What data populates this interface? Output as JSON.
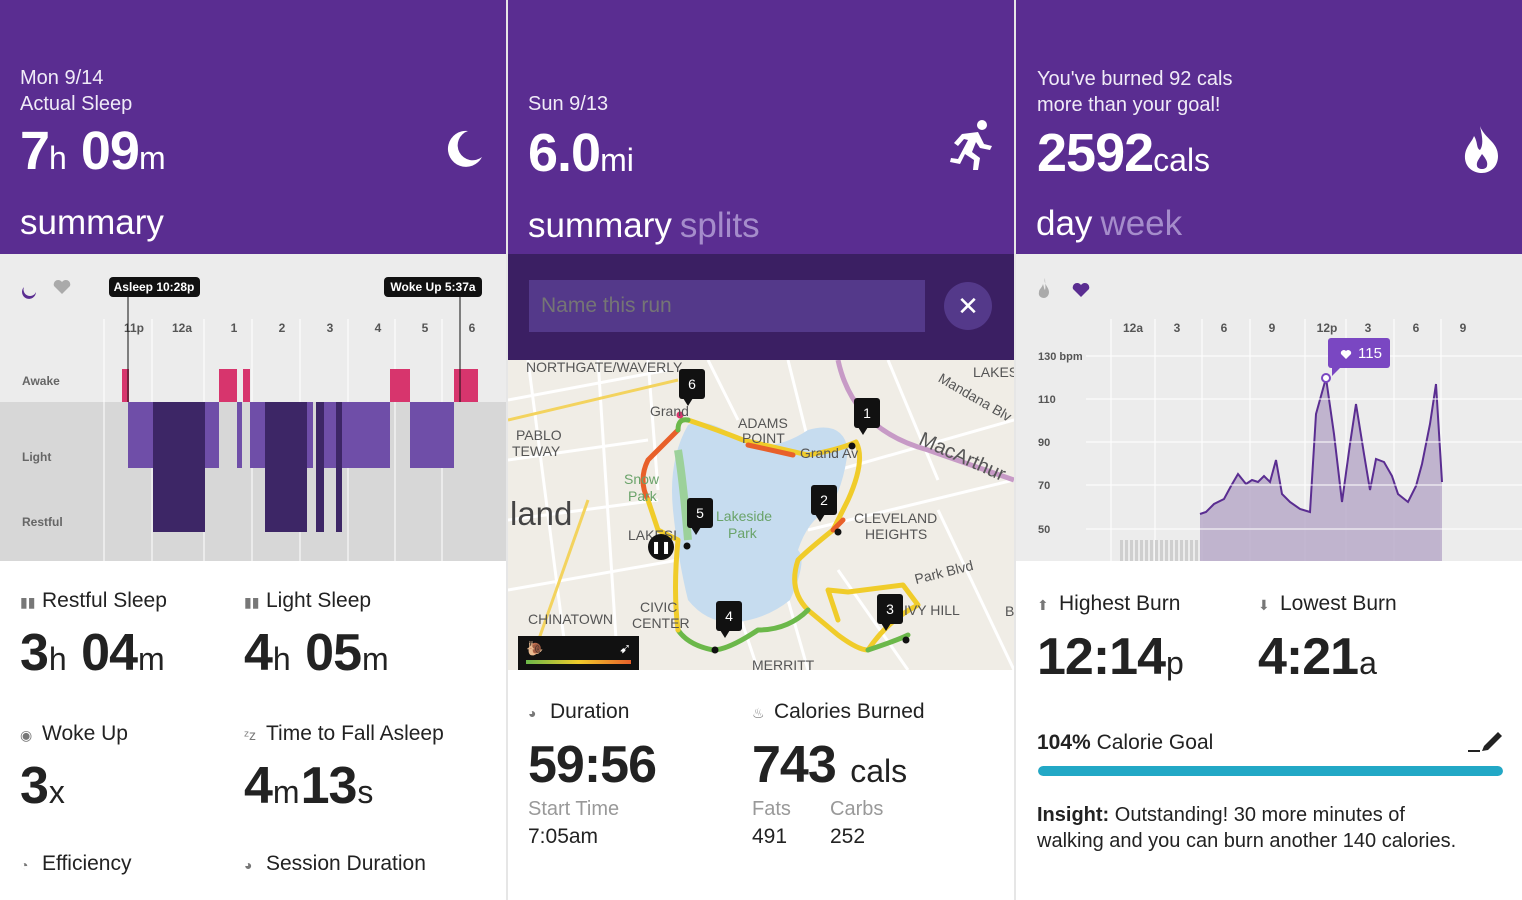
{
  "colors": {
    "header": "#5a2d91",
    "accent": "#5a2d91",
    "awake": "#d7356d",
    "light_sleep": "#6f4ea8",
    "restful_sleep": "#3d2666",
    "goal_bar": "#22a8c6"
  },
  "sleep": {
    "date": "Mon 9/14",
    "caption": "Actual Sleep",
    "duration_h": "7",
    "duration_h_unit": "h",
    "duration_m": "09",
    "duration_m_unit": "m",
    "pivot": "summary",
    "header_icon": "moon-icon",
    "chart_icons": [
      "moon-icon",
      "heart-icon"
    ],
    "asleep_tip": "Asleep 10:28p",
    "woke_tip": "Woke Up 5:37a",
    "hours": [
      "11p",
      "12a",
      "1",
      "2",
      "3",
      "4",
      "5",
      "6"
    ],
    "levels": [
      "Awake",
      "Light",
      "Restful"
    ],
    "stats": {
      "restful_label": "Restful Sleep",
      "restful_h": "3",
      "restful_h_unit": "h",
      "restful_m": "04",
      "restful_m_unit": "m",
      "light_label": "Light Sleep",
      "light_h": "4",
      "light_h_unit": "h",
      "light_m": "05",
      "light_m_unit": "m",
      "woke_label": "Woke Up",
      "woke_value": "3",
      "woke_unit": "x",
      "fall_label": "Time to Fall Asleep",
      "fall_m": "4",
      "fall_m_unit": "m",
      "fall_s": "13",
      "fall_s_unit": "s",
      "efficiency_label": "Efficiency",
      "session_label": "Session Duration"
    }
  },
  "run": {
    "date": "Sun 9/13",
    "distance": "6.0",
    "distance_unit": "mi",
    "pivot_active": "summary",
    "pivot_other": "splits",
    "header_icon": "runner-icon",
    "name_placeholder": "Name this run",
    "map_labels": {
      "northgate": "NORTHGATE/WAVERLY",
      "lakes": "LAKES",
      "mandana": "Mandana Blv",
      "macarthur": "MacArthur",
      "adams1": "ADAMS",
      "adams2": "POINT",
      "grand1": "Grand",
      "grand2": "Grand Av",
      "pablo1": "PABLO",
      "pablo2": "TEWAY",
      "land": "land",
      "snow1": "Snow",
      "snow2": "Park",
      "lakeside1": "Lakeside",
      "lakeside2": "Park",
      "lakesi": "LAKESI",
      "cleveland1": "CLEVELAND",
      "cleveland2": "HEIGHTS",
      "parkblvd": "Park Blvd",
      "ivyhill": "IVY HILL",
      "b": "B",
      "chinatown": "CHINATOWN",
      "civic1": "CIVIC",
      "civic2": "CENTER",
      "merritt": "MERRITT"
    },
    "markers": [
      "1",
      "2",
      "3",
      "4",
      "5",
      "6"
    ],
    "pace_icons": [
      "snail-icon",
      "cheetah-icon"
    ],
    "stats": {
      "duration_label": "Duration",
      "duration_value": "59:56",
      "calories_label": "Calories Burned",
      "calories_value": "743",
      "calories_unit": "cals",
      "start_label": "Start Time",
      "start_value": "7:05am",
      "fats_label": "Fats",
      "fats_value": "491",
      "carbs_label": "Carbs",
      "carbs_value": "252"
    }
  },
  "calories": {
    "message1": "You've burned 92 cals",
    "message2": "more than your goal!",
    "value": "2592",
    "unit": "cals",
    "pivot_active": "day",
    "pivot_other": "week",
    "header_icon": "flame-icon",
    "chart_icons": [
      "flame-icon",
      "heart-icon"
    ],
    "hours": [
      "12a",
      "3",
      "6",
      "9",
      "12p",
      "3",
      "6",
      "9"
    ],
    "bpm_labels": [
      "130 bpm",
      "110",
      "90",
      "70",
      "50"
    ],
    "peak_label": "115",
    "highest_label": "Highest Burn",
    "highest_value": "12:14",
    "highest_unit": "p",
    "lowest_label": "Lowest Burn",
    "lowest_value": "4:21",
    "lowest_unit": "a",
    "goal_pct": "104%",
    "goal_label": "Calorie Goal",
    "goal_fraction": 1.0,
    "insight_label": "Insight:",
    "insight_text1": "Outstanding! 30 more minutes of",
    "insight_text2": "walking and you can burn another 140 calories."
  }
}
